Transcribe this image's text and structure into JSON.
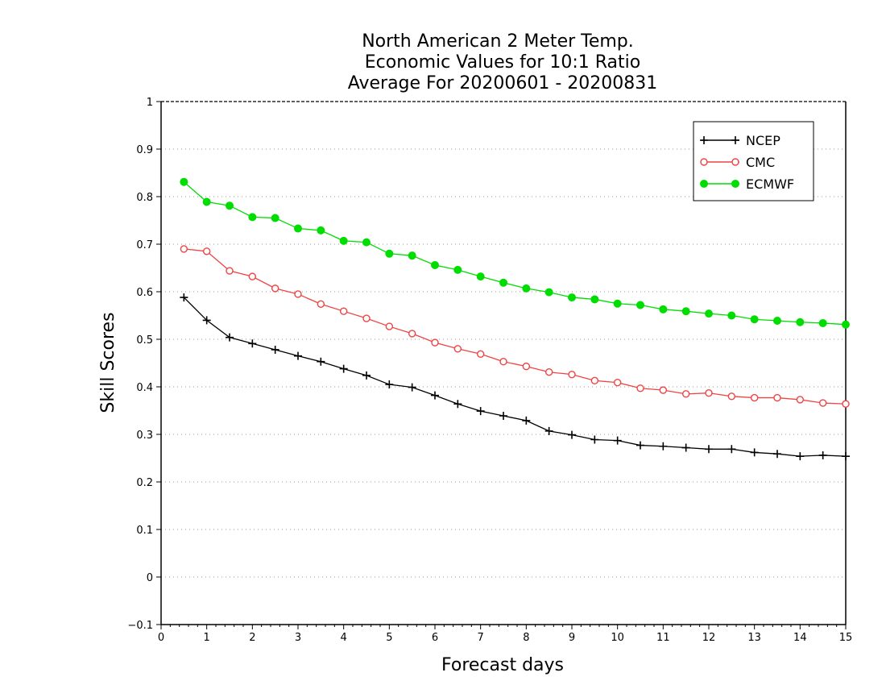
{
  "chart_data": {
    "type": "line",
    "title_lines": [
      "North American 2 Meter Temp.",
      "Economic Values for 10:1 Ratio",
      "Average For 20200601 - 20200831"
    ],
    "xlabel": "Forecast days",
    "ylabel": "Skill Scores",
    "xlim": [
      0,
      15
    ],
    "ylim": [
      -0.1,
      1
    ],
    "x_ticks": [
      "0",
      "1",
      "2",
      "3",
      "4",
      "5",
      "6",
      "7",
      "8",
      "9",
      "10",
      "11",
      "12",
      "13",
      "14",
      "15"
    ],
    "y_ticks": [
      "−0.1",
      "0",
      "0.1",
      "0.2",
      "0.3",
      "0.4",
      "0.5",
      "0.6",
      "0.7",
      "0.8",
      "0.9",
      "1"
    ],
    "grid": true,
    "legend_position": "top-right",
    "x": [
      0.5,
      1,
      1.5,
      2,
      2.5,
      3,
      3.5,
      4,
      4.5,
      5,
      5.5,
      6,
      6.5,
      7,
      7.5,
      8,
      8.5,
      9,
      9.5,
      10,
      10.5,
      11,
      11.5,
      12,
      12.5,
      13,
      13.5,
      14,
      14.5,
      15
    ],
    "series": [
      {
        "name": "NCEP",
        "color": "#000000",
        "marker": "plus",
        "values": [
          0.588,
          0.54,
          0.504,
          0.491,
          0.478,
          0.465,
          0.453,
          0.438,
          0.424,
          0.405,
          0.399,
          0.382,
          0.364,
          0.349,
          0.339,
          0.329,
          0.307,
          0.299,
          0.289,
          0.287,
          0.277,
          0.275,
          0.272,
          0.269,
          0.269,
          0.262,
          0.259,
          0.254,
          0.256,
          0.254
        ]
      },
      {
        "name": "CMC",
        "color": "#ee4444",
        "marker": "open-circle",
        "values": [
          0.69,
          0.685,
          0.644,
          0.632,
          0.607,
          0.595,
          0.574,
          0.559,
          0.544,
          0.527,
          0.512,
          0.493,
          0.48,
          0.469,
          0.453,
          0.443,
          0.431,
          0.426,
          0.413,
          0.409,
          0.397,
          0.393,
          0.385,
          0.387,
          0.38,
          0.377,
          0.377,
          0.373,
          0.366,
          0.364
        ]
      },
      {
        "name": "ECMWF",
        "color": "#00dd00",
        "marker": "filled-circle",
        "values": [
          0.831,
          0.789,
          0.781,
          0.757,
          0.755,
          0.733,
          0.729,
          0.707,
          0.704,
          0.68,
          0.676,
          0.656,
          0.646,
          0.632,
          0.619,
          0.607,
          0.599,
          0.588,
          0.584,
          0.575,
          0.572,
          0.563,
          0.559,
          0.554,
          0.55,
          0.542,
          0.539,
          0.536,
          0.534,
          0.531
        ]
      }
    ]
  }
}
